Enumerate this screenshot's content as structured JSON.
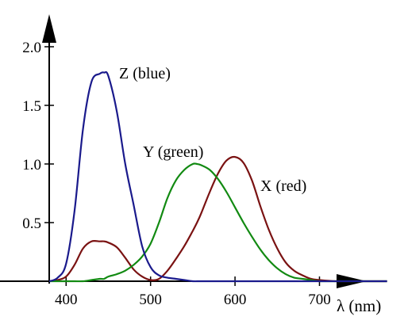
{
  "chart_data": {
    "type": "line",
    "xlabel": "λ (nm)",
    "ylabel": "",
    "xlim": [
      380,
      780
    ],
    "ylim": [
      0,
      2.1
    ],
    "x_ticks": [
      400,
      500,
      600,
      700
    ],
    "y_ticks": [
      0.5,
      1.0,
      1.5,
      2.0
    ],
    "x_tick_labels": [
      "400",
      "500",
      "600",
      "700"
    ],
    "y_tick_labels": [
      "0.5",
      "1.0",
      "1.5",
      "2.0"
    ],
    "grid": false,
    "legend": "none",
    "x": [
      380,
      390,
      400,
      410,
      420,
      430,
      440,
      445,
      450,
      460,
      470,
      480,
      490,
      500,
      510,
      520,
      530,
      540,
      550,
      555,
      560,
      570,
      580,
      590,
      600,
      610,
      620,
      630,
      640,
      650,
      660,
      670,
      680,
      690,
      700,
      720,
      740,
      760,
      780
    ],
    "series": [
      {
        "name": "X (red)",
        "color": "#7a1212",
        "values": [
          0.0,
          0.01,
          0.04,
          0.14,
          0.28,
          0.34,
          0.34,
          0.34,
          0.33,
          0.29,
          0.2,
          0.1,
          0.04,
          0.01,
          0.02,
          0.09,
          0.19,
          0.3,
          0.43,
          0.5,
          0.58,
          0.76,
          0.92,
          1.03,
          1.06,
          1.01,
          0.86,
          0.64,
          0.44,
          0.28,
          0.16,
          0.09,
          0.05,
          0.02,
          0.01,
          0.0,
          0.0,
          0.0,
          0.0
        ]
      },
      {
        "name": "Y (green)",
        "color": "#128a12",
        "values": [
          0.0,
          0.0,
          0.0,
          0.0,
          0.0,
          0.01,
          0.02,
          0.02,
          0.04,
          0.06,
          0.09,
          0.14,
          0.21,
          0.32,
          0.5,
          0.71,
          0.86,
          0.95,
          1.0,
          1.0,
          0.99,
          0.95,
          0.87,
          0.76,
          0.63,
          0.5,
          0.38,
          0.27,
          0.18,
          0.11,
          0.06,
          0.03,
          0.02,
          0.01,
          0.0,
          0.0,
          0.0,
          0.0,
          0.0
        ]
      },
      {
        "name": "Z (blue)",
        "color": "#1a1a8c",
        "values": [
          0.0,
          0.03,
          0.15,
          0.6,
          1.3,
          1.7,
          1.77,
          1.78,
          1.75,
          1.45,
          1.0,
          0.65,
          0.3,
          0.12,
          0.05,
          0.03,
          0.02,
          0.01,
          0.0,
          0.0,
          0.0,
          0.0,
          0.0,
          0.0,
          0.0,
          0.0,
          0.0,
          0.0,
          0.0,
          0.0,
          0.0,
          0.0,
          0.0,
          0.0,
          0.0,
          0.0,
          0.0,
          0.0,
          0.0
        ]
      }
    ]
  }
}
